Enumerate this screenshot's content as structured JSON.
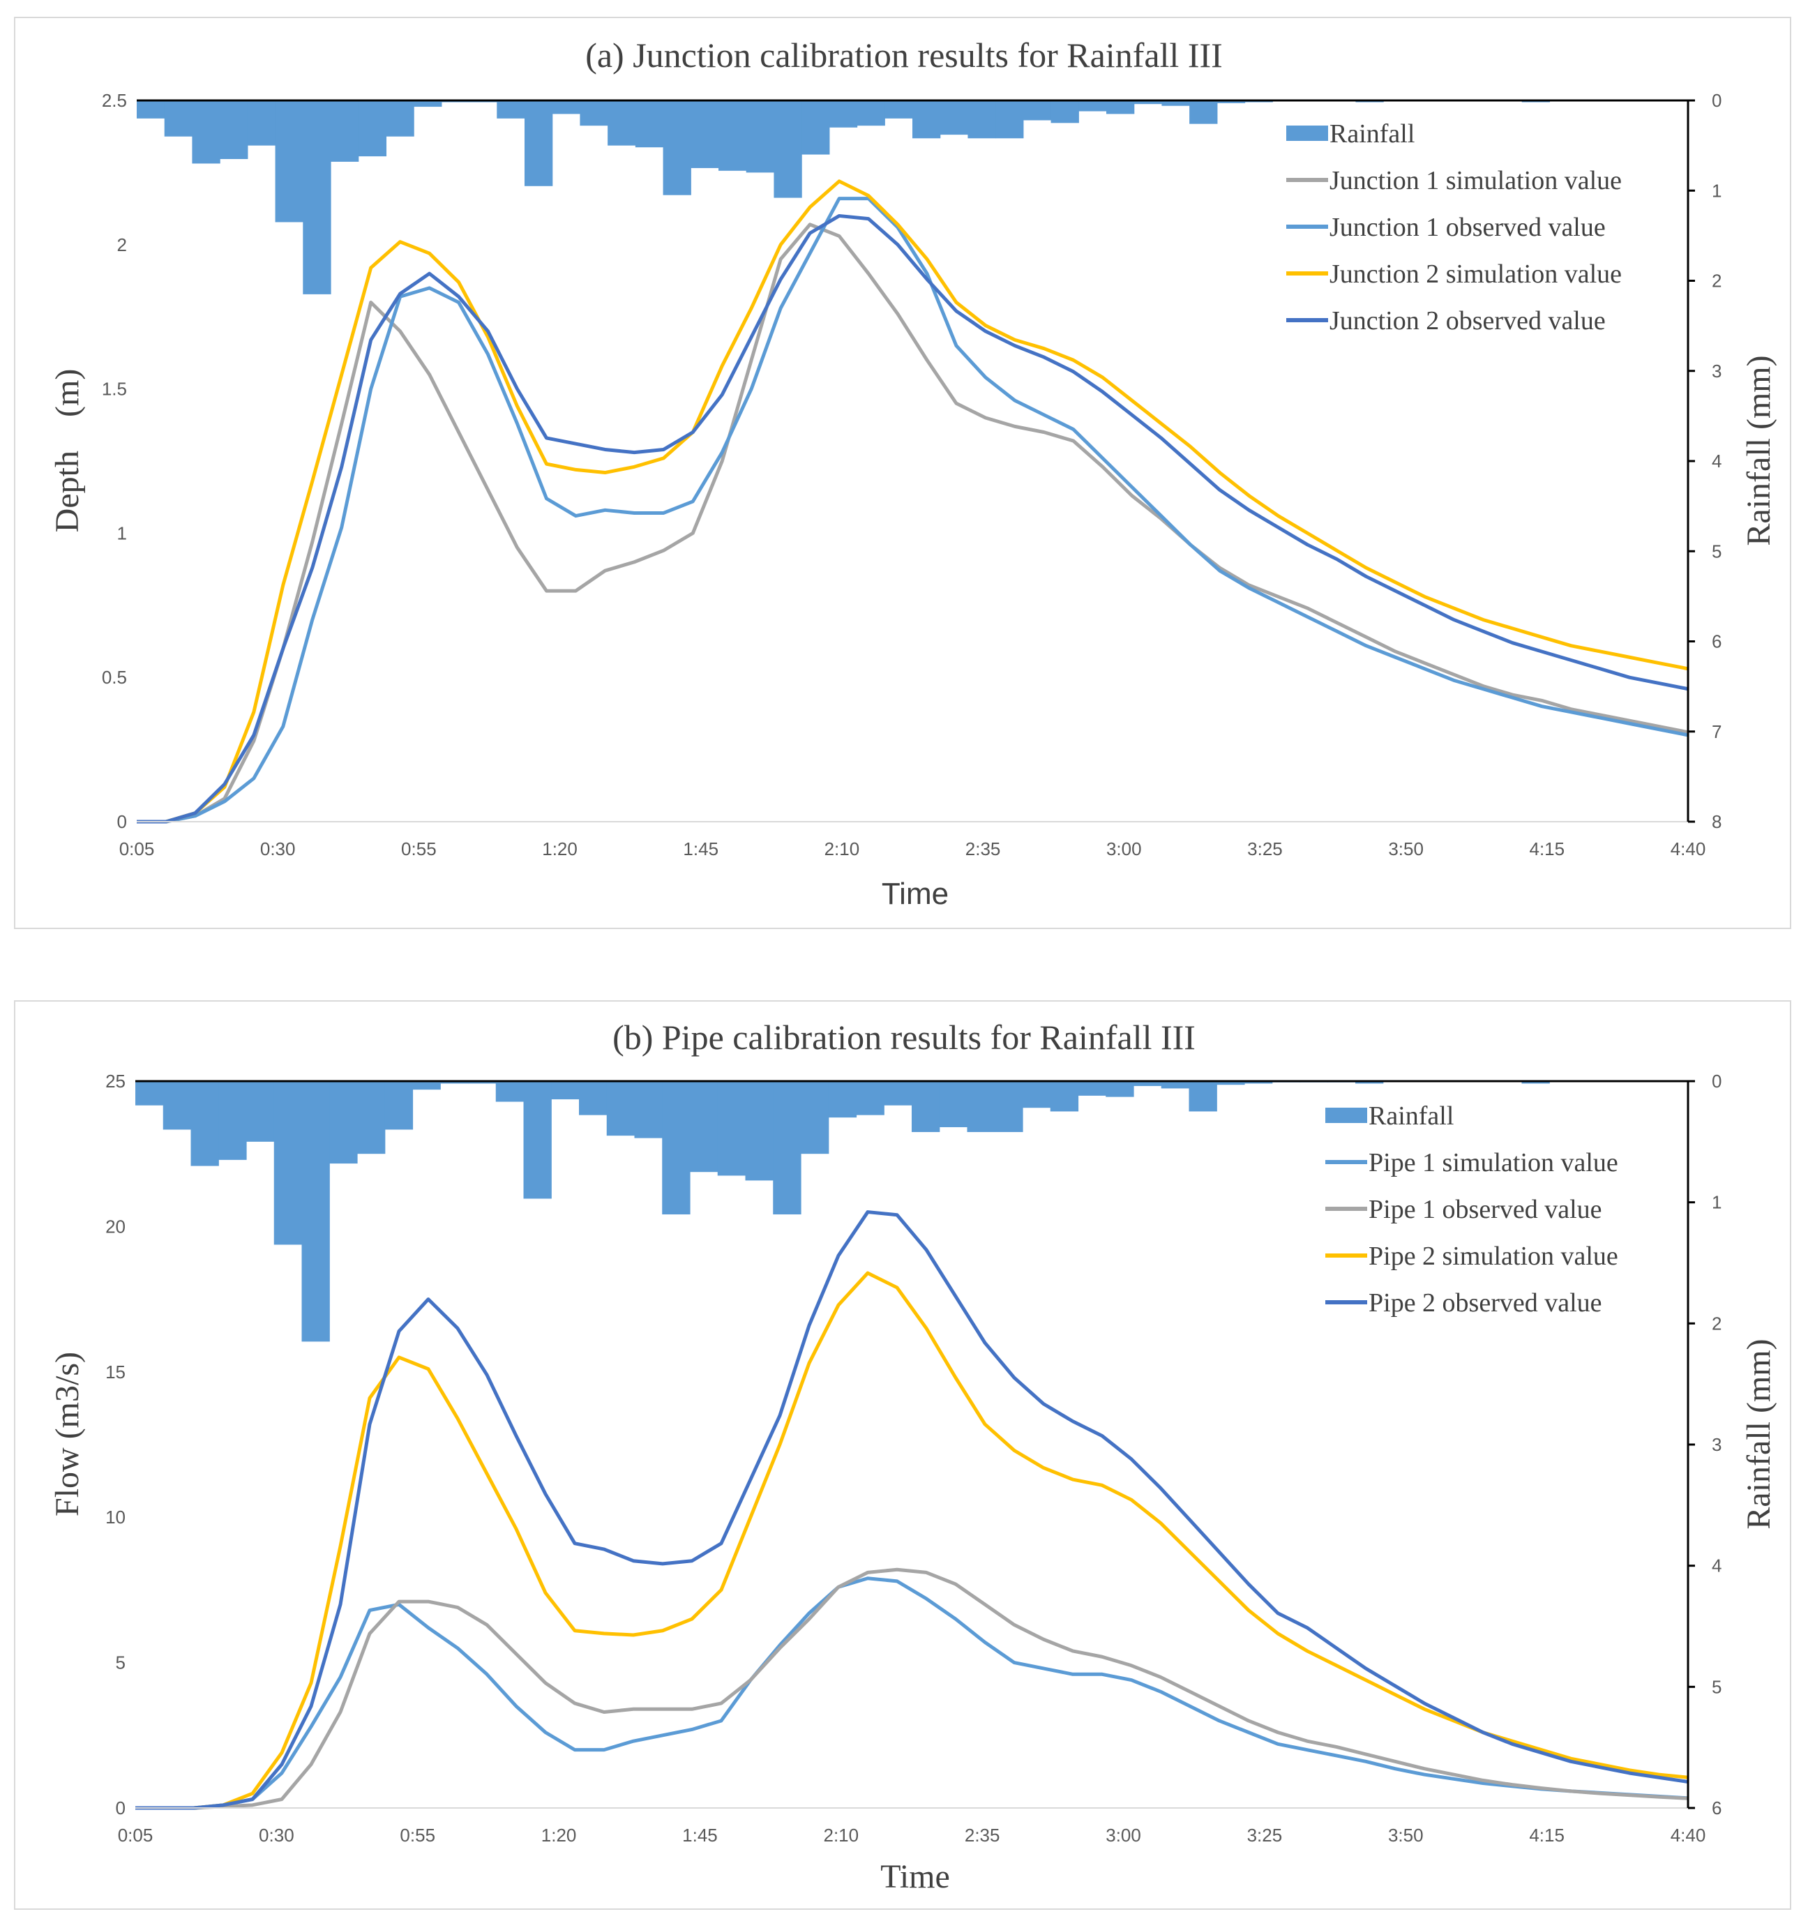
{
  "chart_data": [
    {
      "type": "line",
      "title": "(a)  Junction calibration results for Rainfall III",
      "xlabel": "Time",
      "ylabel": "Depth　(m)",
      "y2label": "Rainfall (mm)",
      "ylim": [
        0,
        2.5
      ],
      "y2lim": [
        0,
        8
      ],
      "y_ticks": [
        "0",
        "0.5",
        "1",
        "1.5",
        "2",
        "2.5"
      ],
      "y2_ticks": [
        "0",
        "1",
        "2",
        "3",
        "4",
        "5",
        "6",
        "7",
        "8"
      ],
      "x_ticks": [
        "0:05",
        "0:30",
        "0:55",
        "1:20",
        "1:45",
        "2:10",
        "2:35",
        "3:00",
        "3:25",
        "3:50",
        "4:15",
        "4:40"
      ],
      "legend_position": "top-right",
      "bar_series": {
        "name": "Rainfall",
        "color": "#5b9bd5",
        "values": [
          0.2,
          0.4,
          0.7,
          0.65,
          0.5,
          1.35,
          2.15,
          0.68,
          0.62,
          0.4,
          0.07,
          0.02,
          0.02,
          0.2,
          0.95,
          0.15,
          0.28,
          0.5,
          0.52,
          1.05,
          0.75,
          0.78,
          0.8,
          1.08,
          0.6,
          0.3,
          0.28,
          0.2,
          0.42,
          0.38,
          0.42,
          0.42,
          0.22,
          0.25,
          0.12,
          0.15,
          0.04,
          0.06,
          0.26,
          0.03,
          0.02,
          0.01,
          0.01,
          0.01,
          0.02,
          0.0,
          0.0,
          0.0,
          0.0,
          0.0,
          0.02,
          0.0,
          0.0,
          0.0,
          0.0,
          0.0
        ]
      },
      "series": [
        {
          "name": "Junction 1 simulation value",
          "color": "#a5a5a5",
          "values": [
            0,
            0,
            0.02,
            0.08,
            0.28,
            0.6,
            0.97,
            1.38,
            1.8,
            1.7,
            1.55,
            1.35,
            1.15,
            0.95,
            0.8,
            0.8,
            0.87,
            0.9,
            0.94,
            1.0,
            1.25,
            1.6,
            1.95,
            2.07,
            2.03,
            1.9,
            1.76,
            1.6,
            1.45,
            1.4,
            1.37,
            1.35,
            1.32,
            1.23,
            1.13,
            1.05,
            0.96,
            0.88,
            0.82,
            0.78,
            0.74,
            0.69,
            0.64,
            0.59,
            0.55,
            0.51,
            0.47,
            0.44,
            0.42,
            0.39,
            0.37,
            0.35,
            0.33,
            0.31
          ]
        },
        {
          "name": "Junction 1 observed value",
          "color": "#5b9bd5",
          "values": [
            0,
            0,
            0.02,
            0.07,
            0.15,
            0.33,
            0.7,
            1.02,
            1.5,
            1.82,
            1.85,
            1.8,
            1.62,
            1.38,
            1.12,
            1.06,
            1.08,
            1.07,
            1.07,
            1.11,
            1.28,
            1.5,
            1.78,
            1.97,
            2.16,
            2.16,
            2.06,
            1.9,
            1.65,
            1.54,
            1.46,
            1.41,
            1.36,
            1.26,
            1.16,
            1.06,
            0.96,
            0.87,
            0.81,
            0.76,
            0.71,
            0.66,
            0.61,
            0.57,
            0.53,
            0.49,
            0.46,
            0.43,
            0.4,
            0.38,
            0.36,
            0.34,
            0.32,
            0.3
          ]
        },
        {
          "name": "Junction 2 simulation value",
          "color": "#ffc000",
          "values": [
            0,
            0,
            0.03,
            0.12,
            0.38,
            0.82,
            1.18,
            1.55,
            1.92,
            2.01,
            1.97,
            1.87,
            1.68,
            1.44,
            1.24,
            1.22,
            1.21,
            1.23,
            1.26,
            1.35,
            1.58,
            1.78,
            2.0,
            2.13,
            2.22,
            2.17,
            2.07,
            1.95,
            1.8,
            1.72,
            1.67,
            1.64,
            1.6,
            1.54,
            1.46,
            1.38,
            1.3,
            1.21,
            1.13,
            1.06,
            1.0,
            0.94,
            0.88,
            0.83,
            0.78,
            0.74,
            0.7,
            0.67,
            0.64,
            0.61,
            0.59,
            0.57,
            0.55,
            0.53
          ]
        },
        {
          "name": "Junction 2 observed value",
          "color": "#4472c4",
          "values": [
            0,
            0,
            0.03,
            0.13,
            0.3,
            0.6,
            0.88,
            1.23,
            1.67,
            1.83,
            1.9,
            1.82,
            1.7,
            1.5,
            1.33,
            1.31,
            1.29,
            1.28,
            1.29,
            1.35,
            1.48,
            1.68,
            1.88,
            2.04,
            2.1,
            2.09,
            2.0,
            1.88,
            1.77,
            1.7,
            1.65,
            1.61,
            1.56,
            1.49,
            1.41,
            1.33,
            1.24,
            1.15,
            1.08,
            1.02,
            0.96,
            0.91,
            0.85,
            0.8,
            0.75,
            0.7,
            0.66,
            0.62,
            0.59,
            0.56,
            0.53,
            0.5,
            0.48,
            0.46
          ]
        }
      ]
    },
    {
      "type": "line",
      "title": "(b)  Pipe calibration results for Rainfall III",
      "xlabel": "Time",
      "ylabel": "Flow (m3/s)",
      "y2label": "Rainfall (mm)",
      "ylim": [
        0,
        25
      ],
      "y2lim": [
        0,
        6
      ],
      "y_ticks": [
        "0",
        "5",
        "10",
        "15",
        "20",
        "25"
      ],
      "y2_ticks": [
        "0",
        "1",
        "2",
        "3",
        "4",
        "5",
        "6"
      ],
      "x_ticks": [
        "0:05",
        "0:30",
        "0:55",
        "1:20",
        "1:45",
        "2:10",
        "2:35",
        "3:00",
        "3:25",
        "3:50",
        "4:15",
        "4:40"
      ],
      "legend_position": "top-right",
      "bar_series": {
        "name": "Rainfall",
        "color": "#5b9bd5",
        "values": [
          0.2,
          0.4,
          0.7,
          0.65,
          0.5,
          1.35,
          2.15,
          0.68,
          0.6,
          0.4,
          0.07,
          0.02,
          0.02,
          0.17,
          0.97,
          0.15,
          0.28,
          0.45,
          0.47,
          1.1,
          0.75,
          0.78,
          0.82,
          1.1,
          0.6,
          0.3,
          0.28,
          0.2,
          0.42,
          0.38,
          0.42,
          0.42,
          0.22,
          0.25,
          0.12,
          0.13,
          0.04,
          0.06,
          0.25,
          0.03,
          0.02,
          0.01,
          0.01,
          0.01,
          0.02,
          0.0,
          0.0,
          0.0,
          0.0,
          0.0,
          0.02,
          0.0,
          0.0,
          0.0,
          0.0,
          0.0
        ]
      },
      "series": [
        {
          "name": "Pipe 1 simulation value",
          "color": "#5b9bd5",
          "values": [
            0,
            0,
            0,
            0.1,
            0.3,
            1.2,
            2.8,
            4.5,
            6.8,
            7.0,
            6.2,
            5.5,
            4.6,
            3.5,
            2.6,
            2.0,
            2.0,
            2.3,
            2.5,
            2.7,
            3.0,
            4.4,
            5.6,
            6.7,
            7.6,
            7.9,
            7.8,
            7.2,
            6.5,
            5.7,
            5.0,
            4.8,
            4.6,
            4.6,
            4.4,
            4.0,
            3.5,
            3.0,
            2.6,
            2.2,
            2.0,
            1.8,
            1.6,
            1.35,
            1.15,
            1.0,
            0.85,
            0.75,
            0.65,
            0.58,
            0.52,
            0.46,
            0.4,
            0.34
          ]
        },
        {
          "name": "Pipe 1 observed value",
          "color": "#a5a5a5",
          "values": [
            0,
            0,
            0,
            0.05,
            0.1,
            0.3,
            1.5,
            3.3,
            6.0,
            7.1,
            7.1,
            6.9,
            6.3,
            5.3,
            4.3,
            3.6,
            3.3,
            3.4,
            3.4,
            3.4,
            3.6,
            4.4,
            5.5,
            6.5,
            7.6,
            8.1,
            8.2,
            8.1,
            7.7,
            7.0,
            6.3,
            5.8,
            5.4,
            5.2,
            4.9,
            4.5,
            4.0,
            3.5,
            3.0,
            2.6,
            2.3,
            2.1,
            1.85,
            1.6,
            1.35,
            1.15,
            0.95,
            0.8,
            0.68,
            0.58,
            0.5,
            0.44,
            0.38,
            0.33
          ]
        },
        {
          "name": "Pipe 2 simulation value",
          "color": "#ffc000",
          "values": [
            0,
            0,
            0,
            0.1,
            0.5,
            1.9,
            4.3,
            9.0,
            14.1,
            15.5,
            15.1,
            13.4,
            11.5,
            9.6,
            7.4,
            6.1,
            6.0,
            5.95,
            6.1,
            6.5,
            7.5,
            10.0,
            12.5,
            15.3,
            17.3,
            18.4,
            17.9,
            16.5,
            14.8,
            13.2,
            12.3,
            11.7,
            11.3,
            11.1,
            10.6,
            9.8,
            8.8,
            7.8,
            6.8,
            6.0,
            5.4,
            4.9,
            4.4,
            3.9,
            3.4,
            3.0,
            2.6,
            2.3,
            2.0,
            1.7,
            1.5,
            1.3,
            1.15,
            1.05
          ]
        },
        {
          "name": "Pipe 2 observed value",
          "color": "#4472c4",
          "values": [
            0,
            0,
            0,
            0.1,
            0.3,
            1.5,
            3.5,
            7.0,
            13.2,
            16.4,
            17.5,
            16.5,
            14.9,
            12.8,
            10.8,
            9.1,
            8.9,
            8.5,
            8.4,
            8.5,
            9.1,
            11.3,
            13.5,
            16.6,
            19.0,
            20.5,
            20.4,
            19.2,
            17.6,
            16.0,
            14.8,
            13.9,
            13.3,
            12.8,
            12.0,
            11.0,
            9.9,
            8.8,
            7.7,
            6.7,
            6.2,
            5.5,
            4.8,
            4.2,
            3.6,
            3.1,
            2.6,
            2.2,
            1.9,
            1.6,
            1.4,
            1.2,
            1.05,
            0.9
          ]
        }
      ]
    }
  ]
}
